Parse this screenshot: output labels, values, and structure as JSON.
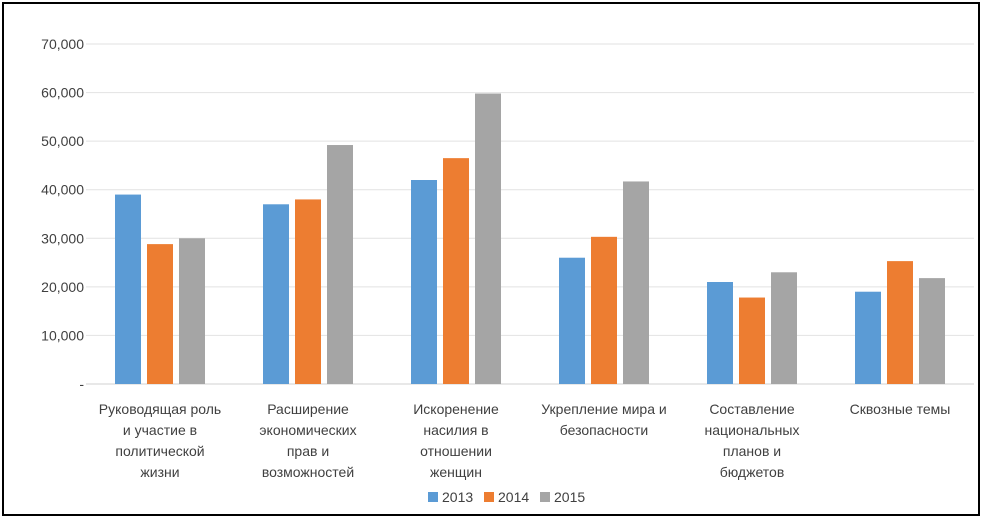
{
  "chart_data": {
    "type": "bar",
    "title": "",
    "xlabel": "",
    "ylabel": "",
    "ylim": [
      0,
      70000
    ],
    "yticks": [
      0,
      10000,
      20000,
      30000,
      40000,
      50000,
      60000,
      70000
    ],
    "ytick_labels": [
      "-",
      "10,000",
      "20,000",
      "30,000",
      "40,000",
      "50,000",
      "60,000",
      "70,000"
    ],
    "grid": true,
    "legend_position": "bottom",
    "categories": [
      [
        "Руководящая роль",
        "и участие в",
        "политической",
        "жизни"
      ],
      [
        "Расширение",
        "экономических",
        "прав и",
        "возможностей"
      ],
      [
        "Искоренение",
        "насилия в",
        "отношении",
        "женщин"
      ],
      [
        "Укрепление мира и",
        "безопасности"
      ],
      [
        "Составление",
        "национальных",
        "планов и",
        "бюджетов"
      ],
      [
        "Сквозные  темы"
      ]
    ],
    "series": [
      {
        "name": "2013",
        "color": "#5B9BD5",
        "values": [
          39000,
          37000,
          42000,
          26000,
          21000,
          19000
        ]
      },
      {
        "name": "2014",
        "color": "#ED7D31",
        "values": [
          28800,
          38000,
          46500,
          30300,
          17800,
          25300
        ]
      },
      {
        "name": "2015",
        "color": "#A5A5A5",
        "values": [
          30000,
          49200,
          59800,
          41700,
          23000,
          21800
        ]
      }
    ]
  }
}
